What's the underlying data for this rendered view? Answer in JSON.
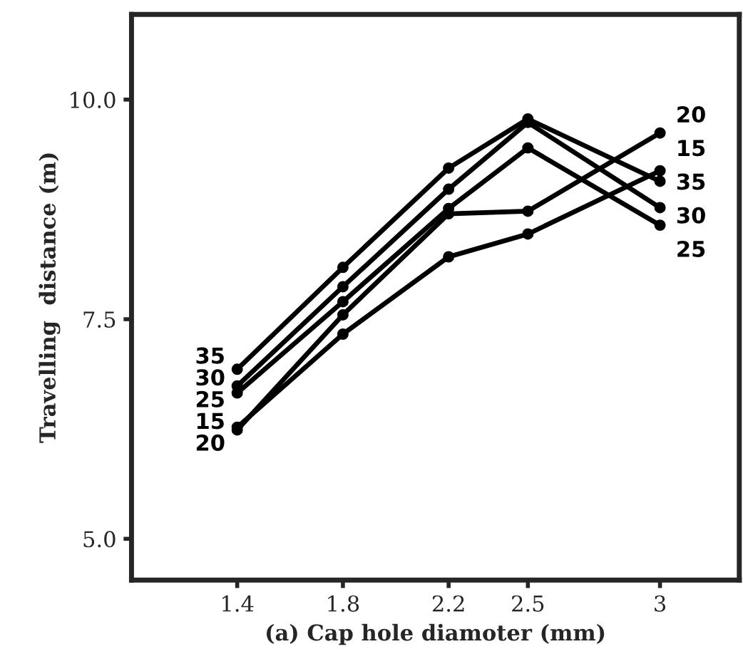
{
  "chart_data": {
    "type": "line",
    "xlabel": "(a) Cap hole diamoter (mm)",
    "ylabel": "Travelling  distance (m)",
    "x": [
      1.4,
      1.8,
      2.2,
      2.5,
      3
    ],
    "series": [
      {
        "name": "35",
        "color": "#000000",
        "values": [
          6.93,
          8.09,
          9.22,
          9.78,
          9.07
        ]
      },
      {
        "name": "30",
        "color": "#000000",
        "values": [
          6.74,
          7.87,
          8.98,
          9.74,
          8.77
        ]
      },
      {
        "name": "25",
        "color": "#000000",
        "values": [
          6.66,
          7.7,
          8.76,
          9.45,
          8.57
        ]
      },
      {
        "name": "15",
        "color": "#000000",
        "values": [
          6.27,
          7.33,
          8.21,
          8.47,
          9.19
        ]
      },
      {
        "name": "20",
        "color": "#000000",
        "values": [
          6.24,
          7.55,
          8.7,
          8.73,
          9.62
        ]
      }
    ],
    "xlim": [
      1.0,
      3.3
    ],
    "ylim": [
      4.53,
      10.97
    ],
    "xticks": [
      1.4,
      1.8,
      2.2,
      2.5,
      3
    ],
    "yticks": [
      {
        "value": 5.0,
        "label": "5.0"
      },
      {
        "value": 7.5,
        "label": "7.5"
      },
      {
        "value": 10.0,
        "label": "10.0"
      }
    ],
    "marker": "circle",
    "line_style": "solid",
    "grid": false,
    "legend": false
  }
}
